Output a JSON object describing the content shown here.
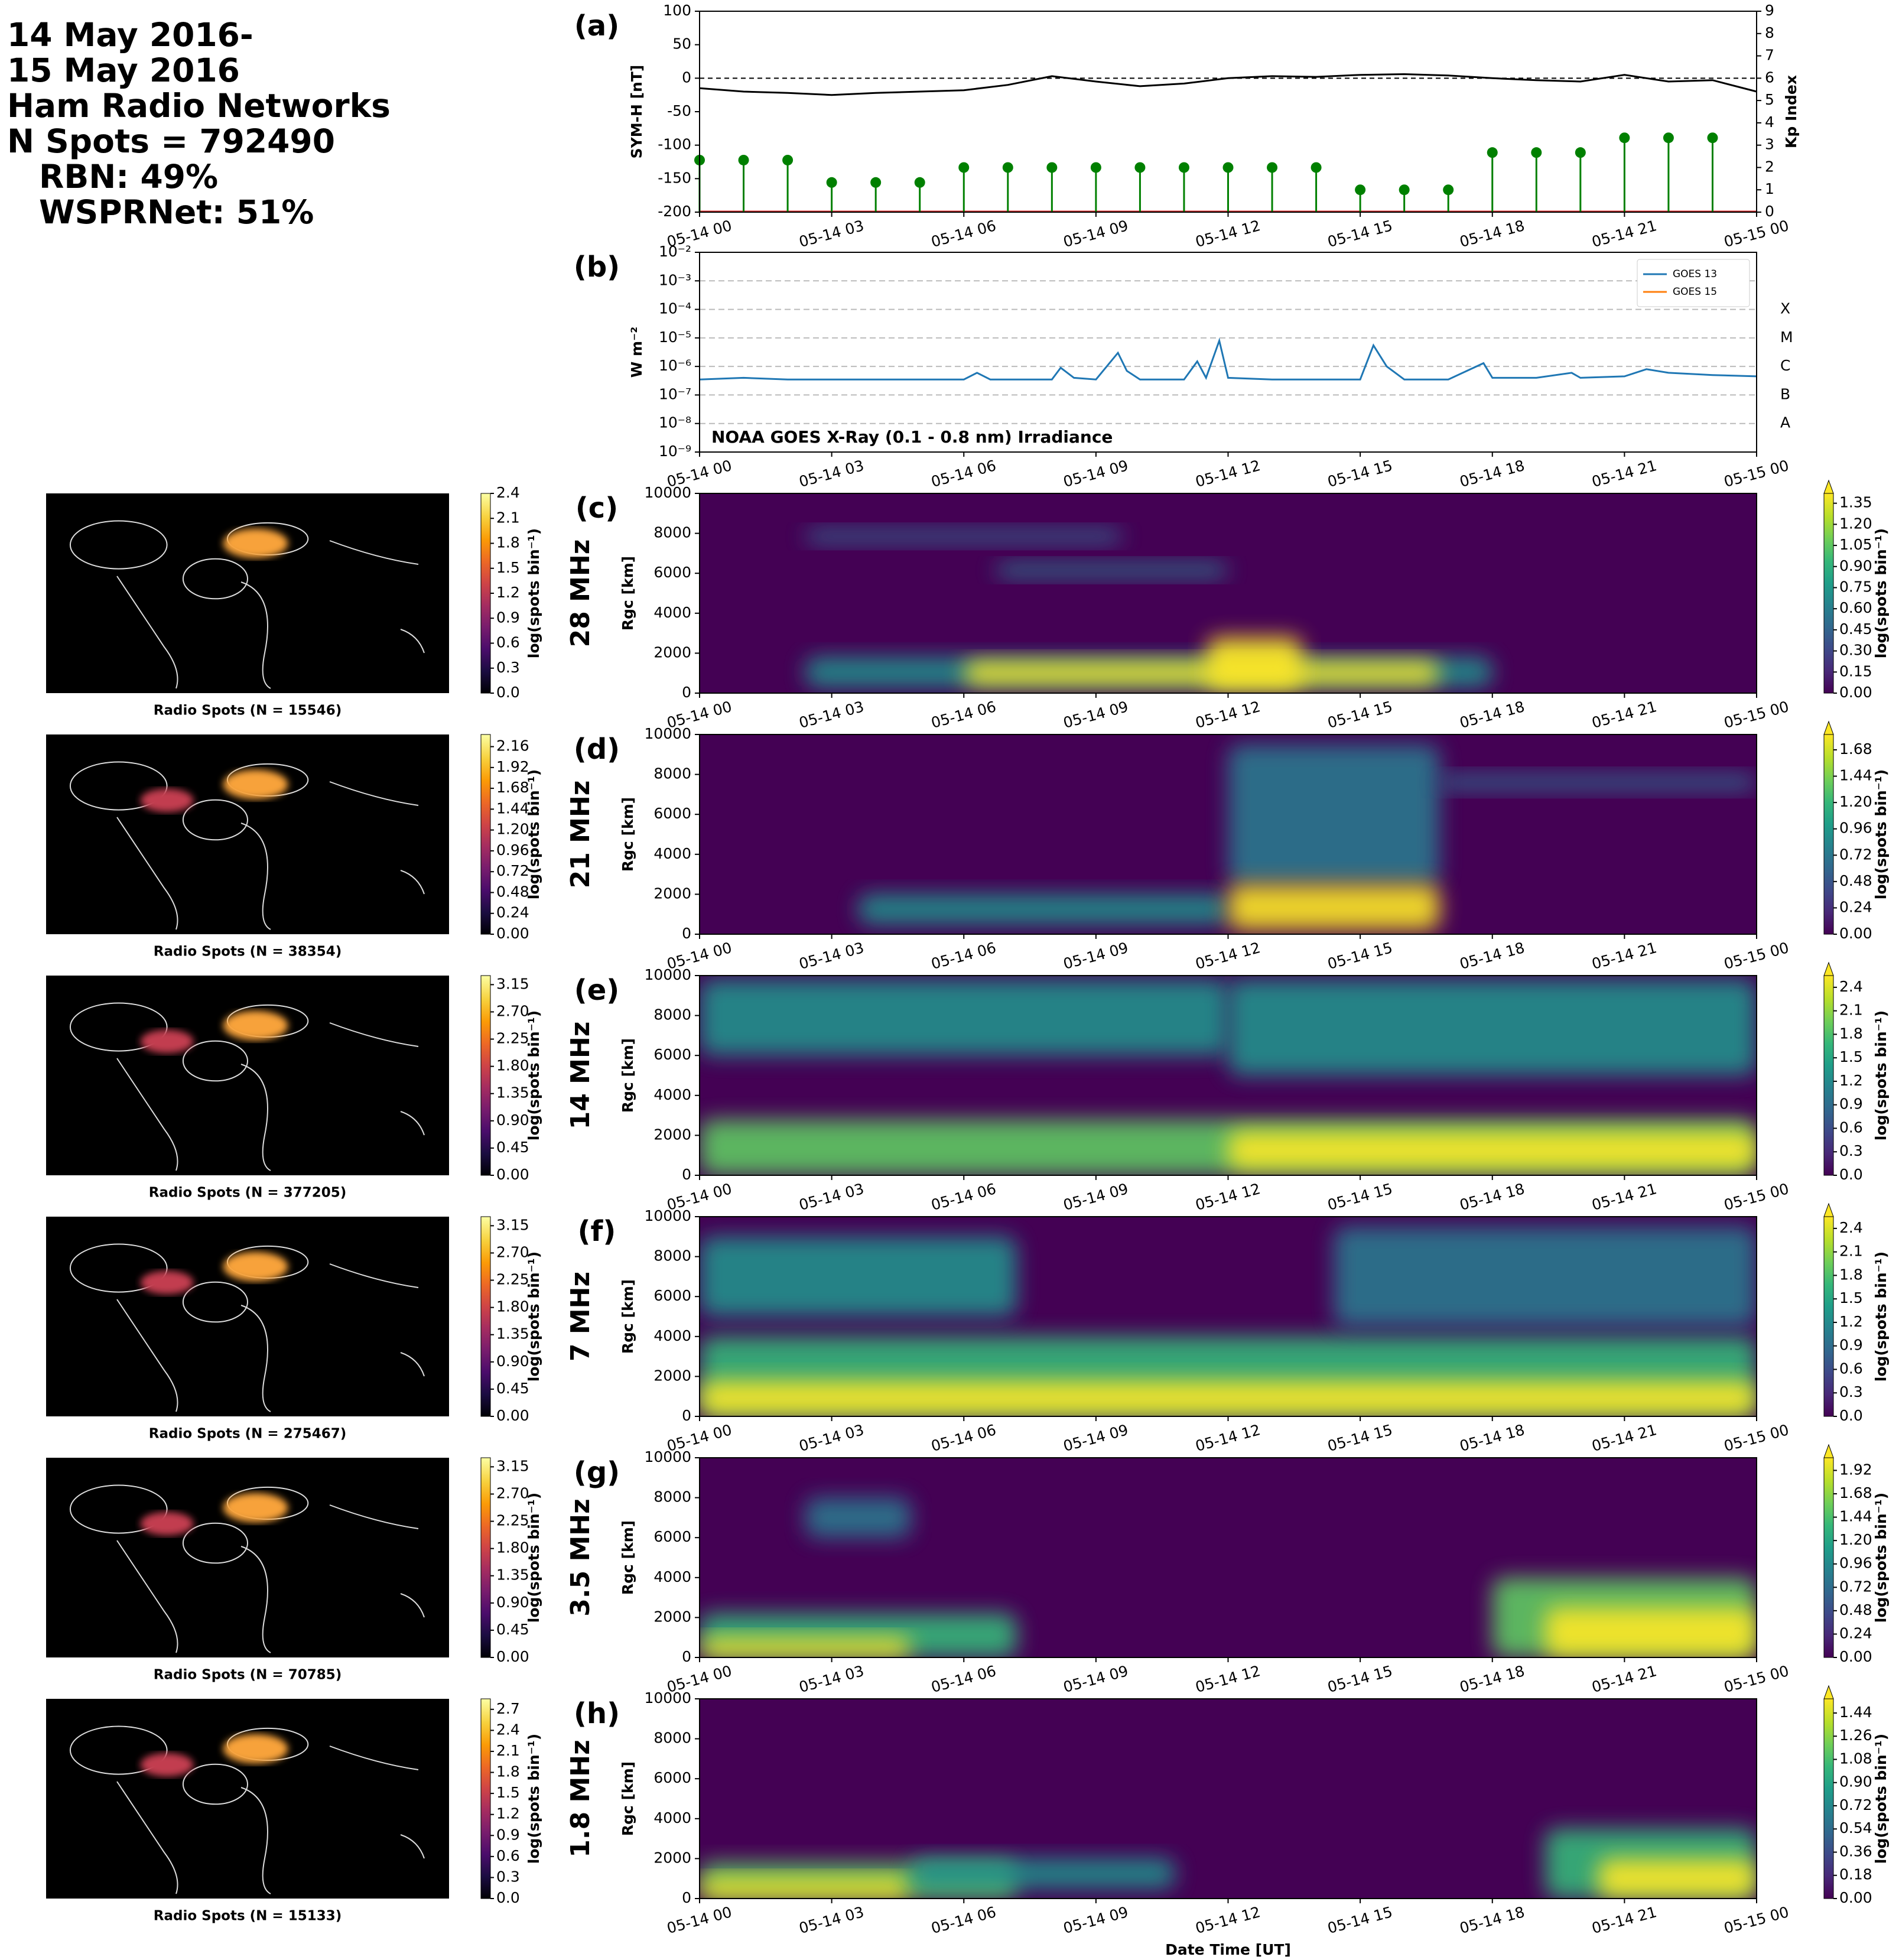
{
  "header": {
    "lines": [
      "14 May 2016-",
      "15 May 2016",
      "Ham Radio Networks",
      "N Spots = 792490",
      "RBN: 49%",
      "WSPRNet: 51%"
    ]
  },
  "chart_data": [
    {
      "type": "line",
      "panel": "(a)",
      "ylabel": "SYM-H [nT]",
      "y2label": "Kp Index",
      "reference_line": 0,
      "xlim": [
        0,
        24
      ],
      "xticks": [
        {
          "value": 0,
          "label": "05-14 00"
        },
        {
          "value": 3,
          "label": "05-14 03"
        },
        {
          "value": 6,
          "label": "05-14 06"
        },
        {
          "value": 9,
          "label": "05-14 09"
        },
        {
          "value": 12,
          "label": "05-14 12"
        },
        {
          "value": 15,
          "label": "05-14 15"
        },
        {
          "value": 18,
          "label": "05-14 18"
        },
        {
          "value": 21,
          "label": "05-14 21"
        },
        {
          "value": 24,
          "label": "05-15 00"
        }
      ],
      "ylim": [
        -200,
        100
      ],
      "yticks": [
        -200,
        -150,
        -100,
        -50,
        0,
        50,
        100
      ],
      "y2lim": [
        0,
        9
      ],
      "y2ticks": [
        0,
        1,
        2,
        3,
        4,
        5,
        6,
        7,
        8,
        9
      ],
      "y2tick_colors": [
        "#008000",
        "#008000",
        "#008000",
        "#008000",
        "#ff8c00",
        "#ff0000",
        "#ff0000",
        "#ff0000",
        "#ff0000",
        "#ff0000"
      ],
      "series": [
        {
          "color": "#000000",
          "x": [
            0,
            1,
            2,
            3,
            4,
            5,
            6,
            7,
            8,
            9,
            10,
            11,
            12,
            13,
            14,
            15,
            16,
            17,
            18,
            19,
            20,
            21,
            22,
            23,
            24
          ],
          "values": [
            -15,
            -20,
            -22,
            -25,
            -22,
            -20,
            -18,
            -10,
            3,
            -5,
            -12,
            -8,
            0,
            3,
            2,
            5,
            6,
            4,
            0,
            -3,
            -5,
            5,
            -5,
            -3,
            -20
          ]
        },
        {
          "axis": "y2",
          "style": "stem",
          "color": "#008000",
          "x": [
            0,
            1,
            2,
            3,
            4,
            5,
            6,
            7,
            8,
            9,
            10,
            11,
            12,
            13,
            14,
            15,
            16,
            17,
            18,
            19,
            20,
            21,
            22,
            23
          ],
          "values": [
            2.33,
            2.33,
            2.33,
            1.33,
            1.33,
            1.33,
            2,
            2,
            2,
            2,
            2,
            2,
            2,
            2,
            2,
            1,
            1,
            1,
            2.67,
            2.67,
            2.67,
            3.33,
            3.33,
            3.33
          ]
        }
      ]
    },
    {
      "type": "line",
      "panel": "(b)",
      "ylabel": "W m⁻²",
      "log": true,
      "grid": true,
      "legend": "upper right",
      "annotation": "NOAA GOES X-Ray (0.1 - 0.8 nm) Irradiance",
      "xlim": [
        0,
        24
      ],
      "xticks": [
        {
          "value": 0,
          "label": "05-14 00"
        },
        {
          "value": 3,
          "label": "05-14 03"
        },
        {
          "value": 6,
          "label": "05-14 06"
        },
        {
          "value": 9,
          "label": "05-14 09"
        },
        {
          "value": 12,
          "label": "05-14 12"
        },
        {
          "value": 15,
          "label": "05-14 15"
        },
        {
          "value": 18,
          "label": "05-14 18"
        },
        {
          "value": 21,
          "label": "05-14 21"
        },
        {
          "value": 24,
          "label": "05-15 00"
        }
      ],
      "ylim": [
        1e-09,
        0.01
      ],
      "yticks": [
        {
          "value": 1e-09,
          "label": "10⁻⁹"
        },
        {
          "value": 1e-08,
          "label": "10⁻⁸"
        },
        {
          "value": 1e-07,
          "label": "10⁻⁷"
        },
        {
          "value": 1e-06,
          "label": "10⁻⁶"
        },
        {
          "value": 1e-05,
          "label": "10⁻⁵"
        },
        {
          "value": 0.0001,
          "label": "10⁻⁴"
        },
        {
          "value": 0.001,
          "label": "10⁻³"
        },
        {
          "value": 0.01,
          "label": "10⁻²"
        }
      ],
      "flare_classes": [
        {
          "value": 0.0001,
          "label": "X"
        },
        {
          "value": 1e-05,
          "label": "M"
        },
        {
          "value": 1e-06,
          "label": "C"
        },
        {
          "value": 1e-07,
          "label": "B"
        },
        {
          "value": 1e-08,
          "label": "A"
        }
      ],
      "x": [
        0,
        1,
        2,
        3,
        4,
        5,
        6,
        6.3,
        6.6,
        7,
        8,
        8.2,
        8.5,
        9,
        9.5,
        9.7,
        10,
        11,
        11.3,
        11.5,
        11.8,
        12,
        13,
        14,
        15,
        15.3,
        15.6,
        16,
        17,
        17.8,
        18,
        19,
        19.8,
        20,
        21,
        21.5,
        22,
        23,
        24
      ],
      "series": [
        {
          "name": "GOES 13",
          "color": "#1f77b4",
          "values": [
            3.5e-07,
            4e-07,
            3.5e-07,
            3.5e-07,
            3.5e-07,
            3.5e-07,
            3.5e-07,
            6e-07,
            3.5e-07,
            3.5e-07,
            3.5e-07,
            9e-07,
            4e-07,
            3.5e-07,
            3e-06,
            7e-07,
            3.5e-07,
            3.5e-07,
            1.5e-06,
            4e-07,
            8e-06,
            4e-07,
            3.5e-07,
            3.5e-07,
            3.5e-07,
            5.5e-06,
            1e-06,
            3.5e-07,
            3.5e-07,
            1.3e-06,
            4e-07,
            4e-07,
            6e-07,
            4e-07,
            4.5e-07,
            8e-07,
            6e-07,
            5e-07,
            4.5e-07
          ]
        },
        {
          "name": "GOES 15",
          "color": "#ff7f0e",
          "values": [
            null,
            null,
            null,
            null,
            null,
            null,
            null,
            null,
            null,
            null,
            null,
            null,
            null,
            null,
            null,
            null,
            null,
            null,
            null,
            null,
            null,
            null,
            null,
            null,
            null,
            null,
            null,
            null,
            null,
            null,
            null,
            null,
            null,
            null,
            null,
            null,
            null,
            null,
            null
          ]
        }
      ]
    },
    {
      "type": "heatmap",
      "panel": "(c)",
      "band": "28 MHz",
      "ylabel": "Rgc [km]",
      "xlim": [
        0,
        24
      ],
      "xticks": [
        {
          "value": 0,
          "label": "05-14 00"
        },
        {
          "value": 3,
          "label": "05-14 03"
        },
        {
          "value": 6,
          "label": "05-14 06"
        },
        {
          "value": 9,
          "label": "05-14 09"
        },
        {
          "value": 12,
          "label": "05-14 12"
        },
        {
          "value": 15,
          "label": "05-14 15"
        },
        {
          "value": 18,
          "label": "05-14 18"
        },
        {
          "value": 21,
          "label": "05-14 21"
        },
        {
          "value": 24,
          "label": "05-15 00"
        }
      ],
      "ylim": [
        0,
        10000
      ],
      "yticks": [
        0,
        2000,
        4000,
        6000,
        8000,
        10000
      ],
      "colorbar": {
        "label": "log(spots bin⁻¹)",
        "extend": "max",
        "lim": [
          0,
          1.42
        ],
        "ticks": [
          {
            "value": 0,
            "label": "0.00"
          },
          0.15,
          {
            "value": 0.3,
            "label": "0.30"
          },
          0.45,
          {
            "value": 0.6,
            "label": "0.60"
          },
          0.75,
          {
            "value": 0.9,
            "label": "0.90"
          },
          1.05,
          {
            "value": 1.2,
            "label": "1.20"
          },
          1.35
        ]
      },
      "map": {
        "caption": "Radio Spots (N = 15546)",
        "colorbar": {
          "label": "log(spots bin⁻¹)",
          "lim": [
            0,
            2.4
          ],
          "ticks": [
            {
              "value": 0,
              "label": "0.0"
            },
            0.3,
            0.6,
            0.9,
            1.2,
            1.5,
            1.8,
            2.1,
            2.4
          ]
        }
      }
    },
    {
      "type": "heatmap",
      "panel": "(d)",
      "band": "21 MHz",
      "ylabel": "Rgc [km]",
      "xlim": [
        0,
        24
      ],
      "xticks": [
        {
          "value": 0,
          "label": "05-14 00"
        },
        {
          "value": 3,
          "label": "05-14 03"
        },
        {
          "value": 6,
          "label": "05-14 06"
        },
        {
          "value": 9,
          "label": "05-14 09"
        },
        {
          "value": 12,
          "label": "05-14 12"
        },
        {
          "value": 15,
          "label": "05-14 15"
        },
        {
          "value": 18,
          "label": "05-14 18"
        },
        {
          "value": 21,
          "label": "05-14 21"
        },
        {
          "value": 24,
          "label": "05-15 00"
        }
      ],
      "ylim": [
        0,
        10000
      ],
      "yticks": [
        0,
        2000,
        4000,
        6000,
        8000,
        10000
      ],
      "colorbar": {
        "label": "log(spots bin⁻¹)",
        "extend": "max",
        "lim": [
          0,
          1.82
        ],
        "ticks": [
          {
            "value": 0,
            "label": "0.00"
          },
          0.24,
          0.48,
          0.72,
          0.96,
          {
            "value": 1.2,
            "label": "1.20"
          },
          1.44,
          1.68
        ]
      },
      "map": {
        "caption": "Radio Spots (N = 38354)",
        "colorbar": {
          "label": "log(spots bin⁻¹)",
          "lim": [
            0,
            2.3
          ],
          "ticks": [
            {
              "value": 0,
              "label": "0.00"
            },
            0.24,
            0.48,
            0.72,
            0.96,
            {
              "value": 1.2,
              "label": "1.20"
            },
            1.44,
            1.68,
            1.92,
            2.16
          ]
        }
      }
    },
    {
      "type": "heatmap",
      "panel": "(e)",
      "band": "14 MHz",
      "ylabel": "Rgc [km]",
      "xlim": [
        0,
        24
      ],
      "xticks": [
        {
          "value": 0,
          "label": "05-14 00"
        },
        {
          "value": 3,
          "label": "05-14 03"
        },
        {
          "value": 6,
          "label": "05-14 06"
        },
        {
          "value": 9,
          "label": "05-14 09"
        },
        {
          "value": 12,
          "label": "05-14 12"
        },
        {
          "value": 15,
          "label": "05-14 15"
        },
        {
          "value": 18,
          "label": "05-14 18"
        },
        {
          "value": 21,
          "label": "05-14 21"
        },
        {
          "value": 24,
          "label": "05-15 00"
        }
      ],
      "ylim": [
        0,
        10000
      ],
      "yticks": [
        0,
        2000,
        4000,
        6000,
        8000,
        10000
      ],
      "colorbar": {
        "label": "log(spots bin⁻¹)",
        "extend": "max",
        "lim": [
          0,
          2.55
        ],
        "ticks": [
          {
            "value": 0,
            "label": "0.0"
          },
          0.3,
          0.6,
          0.9,
          1.2,
          1.5,
          1.8,
          2.1,
          2.4
        ]
      },
      "map": {
        "caption": "Radio Spots (N = 377205)",
        "colorbar": {
          "label": "log(spots bin⁻¹)",
          "lim": [
            0,
            3.3
          ],
          "ticks": [
            {
              "value": 0,
              "label": "0.00"
            },
            0.45,
            {
              "value": 0.9,
              "label": "0.90"
            },
            1.35,
            {
              "value": 1.8,
              "label": "1.80"
            },
            2.25,
            {
              "value": 2.7,
              "label": "2.70"
            },
            3.15
          ]
        }
      }
    },
    {
      "type": "heatmap",
      "panel": "(f)",
      "band": "7 MHz",
      "ylabel": "Rgc [km]",
      "xlim": [
        0,
        24
      ],
      "xticks": [
        {
          "value": 0,
          "label": "05-14 00"
        },
        {
          "value": 3,
          "label": "05-14 03"
        },
        {
          "value": 6,
          "label": "05-14 06"
        },
        {
          "value": 9,
          "label": "05-14 09"
        },
        {
          "value": 12,
          "label": "05-14 12"
        },
        {
          "value": 15,
          "label": "05-14 15"
        },
        {
          "value": 18,
          "label": "05-14 18"
        },
        {
          "value": 21,
          "label": "05-14 21"
        },
        {
          "value": 24,
          "label": "05-15 00"
        }
      ],
      "ylim": [
        0,
        10000
      ],
      "yticks": [
        0,
        2000,
        4000,
        6000,
        8000,
        10000
      ],
      "colorbar": {
        "label": "log(spots bin⁻¹)",
        "extend": "max",
        "lim": [
          0,
          2.55
        ],
        "ticks": [
          {
            "value": 0,
            "label": "0.0"
          },
          0.3,
          0.6,
          0.9,
          1.2,
          1.5,
          1.8,
          2.1,
          2.4
        ]
      },
      "map": {
        "caption": "Radio Spots (N = 275467)",
        "colorbar": {
          "label": "log(spots bin⁻¹)",
          "lim": [
            0,
            3.3
          ],
          "ticks": [
            {
              "value": 0,
              "label": "0.00"
            },
            0.45,
            {
              "value": 0.9,
              "label": "0.90"
            },
            1.35,
            {
              "value": 1.8,
              "label": "1.80"
            },
            2.25,
            {
              "value": 2.7,
              "label": "2.70"
            },
            3.15
          ]
        }
      }
    },
    {
      "type": "heatmap",
      "panel": "(g)",
      "band": "3.5 MHz",
      "ylabel": "Rgc [km]",
      "xlim": [
        0,
        24
      ],
      "xticks": [
        {
          "value": 0,
          "label": "05-14 00"
        },
        {
          "value": 3,
          "label": "05-14 03"
        },
        {
          "value": 6,
          "label": "05-14 06"
        },
        {
          "value": 9,
          "label": "05-14 09"
        },
        {
          "value": 12,
          "label": "05-14 12"
        },
        {
          "value": 15,
          "label": "05-14 15"
        },
        {
          "value": 18,
          "label": "05-14 18"
        },
        {
          "value": 21,
          "label": "05-14 21"
        },
        {
          "value": 24,
          "label": "05-15 00"
        }
      ],
      "ylim": [
        0,
        10000
      ],
      "yticks": [
        0,
        2000,
        4000,
        6000,
        8000,
        10000
      ],
      "colorbar": {
        "label": "log(spots bin⁻¹)",
        "extend": "max",
        "lim": [
          0,
          2.05
        ],
        "ticks": [
          {
            "value": 0,
            "label": "0.00"
          },
          0.24,
          0.48,
          0.72,
          0.96,
          {
            "value": 1.2,
            "label": "1.20"
          },
          1.44,
          1.68,
          1.92
        ]
      },
      "map": {
        "caption": "Radio Spots (N = 70785)",
        "colorbar": {
          "label": "log(spots bin⁻¹)",
          "lim": [
            0,
            3.3
          ],
          "ticks": [
            {
              "value": 0,
              "label": "0.00"
            },
            0.45,
            {
              "value": 0.9,
              "label": "0.90"
            },
            1.35,
            {
              "value": 1.8,
              "label": "1.80"
            },
            2.25,
            {
              "value": 2.7,
              "label": "2.70"
            },
            3.15
          ]
        }
      }
    },
    {
      "type": "heatmap",
      "panel": "(h)",
      "band": "1.8 MHz",
      "ylabel": "Rgc [km]",
      "xlabel": "Date Time [UT]",
      "xlim": [
        0,
        24
      ],
      "xticks": [
        {
          "value": 0,
          "label": "05-14 00"
        },
        {
          "value": 3,
          "label": "05-14 03"
        },
        {
          "value": 6,
          "label": "05-14 06"
        },
        {
          "value": 9,
          "label": "05-14 09"
        },
        {
          "value": 12,
          "label": "05-14 12"
        },
        {
          "value": 15,
          "label": "05-14 15"
        },
        {
          "value": 18,
          "label": "05-14 18"
        },
        {
          "value": 21,
          "label": "05-14 21"
        },
        {
          "value": 24,
          "label": "05-15 00"
        }
      ],
      "ylim": [
        0,
        10000
      ],
      "yticks": [
        0,
        2000,
        4000,
        6000,
        8000,
        10000
      ],
      "colorbar": {
        "label": "log(spots bin⁻¹)",
        "extend": "max",
        "lim": [
          0,
          1.55
        ],
        "ticks": [
          {
            "value": 0,
            "label": "0.00"
          },
          0.18,
          0.36,
          0.54,
          0.72,
          {
            "value": 0.9,
            "label": "0.90"
          },
          1.08,
          1.26,
          1.44
        ]
      },
      "map": {
        "caption": "Radio Spots (N = 15133)",
        "colorbar": {
          "label": "log(spots bin⁻¹)",
          "lim": [
            0,
            2.85
          ],
          "ticks": [
            {
              "value": 0,
              "label": "0.0"
            },
            0.3,
            0.6,
            0.9,
            1.2,
            1.5,
            1.8,
            2.1,
            2.4,
            2.7
          ]
        }
      }
    }
  ]
}
